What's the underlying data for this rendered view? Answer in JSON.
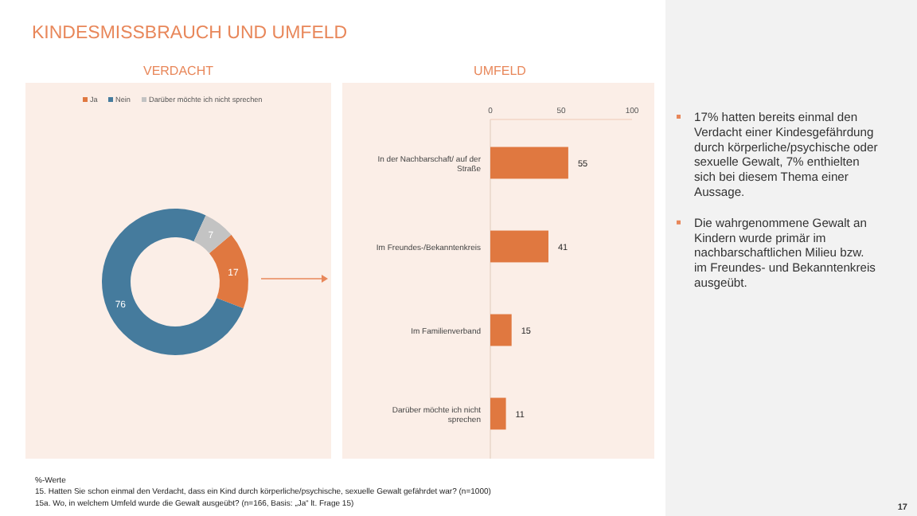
{
  "chart_data": [
    {
      "type": "donut",
      "title": "VERDACHT",
      "categories": [
        "Ja",
        "Nein",
        "Darüber möchte ich nicht sprechen"
      ],
      "values": [
        17,
        76,
        7
      ],
      "colors": [
        "#e07840",
        "#457b9d",
        "#c3c3c3"
      ],
      "data_labels": true,
      "legend": "top"
    },
    {
      "type": "bar",
      "title": "UMFELD",
      "orientation": "horizontal",
      "categories": [
        "In der Nachbarschaft/ auf der Straße",
        "Im Freundes-/Bekanntenkreis",
        "Im Familienverband",
        "Darüber möchte ich nicht sprechen"
      ],
      "values": [
        55,
        41,
        15,
        11
      ],
      "color": "#e07840",
      "xlim": [
        0,
        100
      ],
      "xticks": [
        0,
        50,
        100
      ],
      "data_labels": true
    },
    {
      "type": "other",
      "title": "KINDESMISSBRAUCH UND UMFELD",
      "annotations": [
        "17% hatten bereits einmal den Verdacht einer Kindesgefährdung durch körperliche/psychische oder sexuelle Gewalt, 7% enthielten sich bei diesem Thema einer Aussage.",
        "Die wahrgenommene Gewalt an Kindern wurde primär im nachbarschaftlichen Milieu bzw. im Freundes- und Bekanntenkreis ausgeübt.",
        "%-Werte",
        "15. Hatten Sie schon einmal den Verdacht, dass ein Kind durch körperliche/psychische, sexuelle Gewalt gefährdet war? (n=1000)",
        "15a. Wo, in welchem Umfeld wurde die Gewalt ausgeübt? (n=166, Basis: „Ja“ lt. Frage 15)",
        "17"
      ]
    }
  ]
}
